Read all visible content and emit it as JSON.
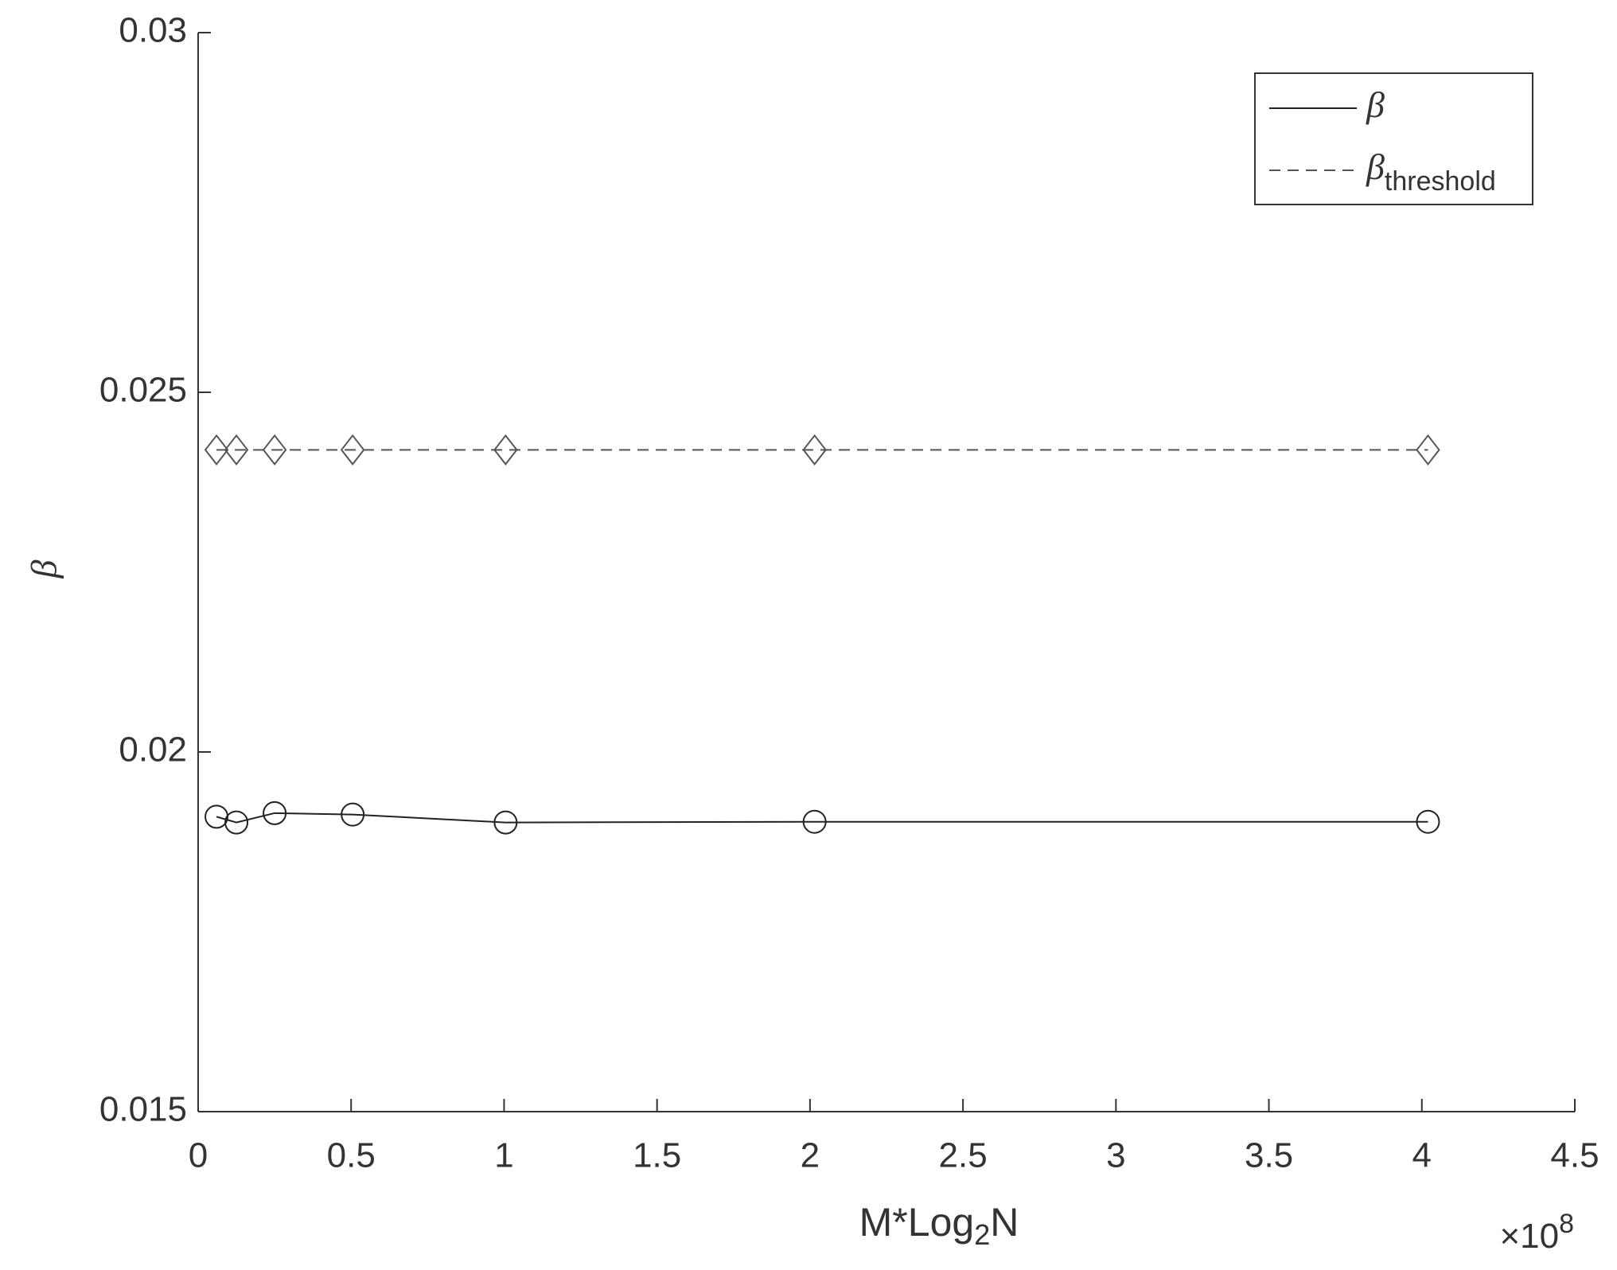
{
  "chart_data": {
    "type": "line",
    "xlabel": [
      "M*Log",
      "2",
      "N"
    ],
    "x_multiplier": [
      "×10",
      "8"
    ],
    "ylabel": "β",
    "x": [
      0.06,
      0.125,
      0.25,
      0.505,
      1.005,
      2.015,
      4.02
    ],
    "series": [
      {
        "name": "β",
        "color": "#222222",
        "linestyle": "solid",
        "marker": "circle",
        "values": [
          0.0191,
          0.01902,
          0.01915,
          0.01913,
          0.01902,
          0.01903,
          0.01903
        ]
      },
      {
        "name": "β",
        "subscript": "threshold",
        "color": "#555555",
        "linestyle": "dashed",
        "marker": "diamond",
        "values": [
          0.0242,
          0.0242,
          0.0242,
          0.0242,
          0.0242,
          0.0242,
          0.0242
        ]
      }
    ],
    "xlim": [
      0,
      4.5
    ],
    "xticks": [
      0,
      0.5,
      1,
      1.5,
      2,
      2.5,
      3,
      3.5,
      4,
      4.5
    ],
    "ylim": [
      0.015,
      0.03
    ],
    "yticks": [
      0.015,
      0.02,
      0.025,
      0.03
    ],
    "grid": false,
    "legend": "upper right"
  }
}
